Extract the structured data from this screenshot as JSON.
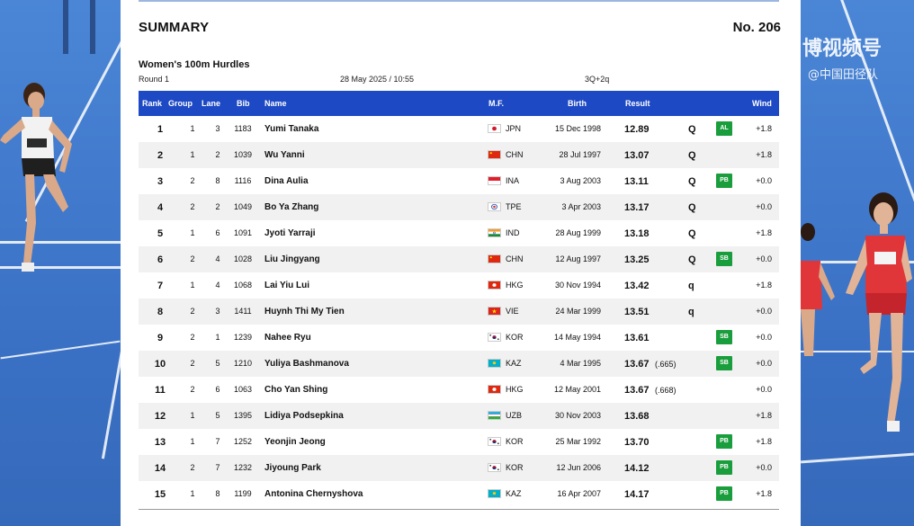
{
  "document": {
    "title": "SUMMARY",
    "number": "No. 206",
    "event": "Women's 100m Hurdles",
    "round": "Round 1",
    "datetime": "28 May 2025 / 10:55",
    "qualification": "3Q+2q"
  },
  "watermark": {
    "line1": "博视频号",
    "line2": "@中国田径队"
  },
  "table": {
    "headers": {
      "rank": "Rank",
      "group": "Group",
      "lane": "Lane",
      "bib": "Bib",
      "name": "Name",
      "mf": "M.F.",
      "birth": "Birth",
      "result": "Result",
      "wind": "Wind"
    },
    "rows": [
      {
        "rank": "1",
        "group": "1",
        "lane": "3",
        "bib": "1183",
        "name": "Yumi Tanaka",
        "country": "JPN",
        "flag": "jpn",
        "birth": "15 Dec 1998",
        "result": "12.89",
        "sub": "",
        "qual": "Q",
        "badge": "AL",
        "wind": "+1.8"
      },
      {
        "rank": "2",
        "group": "1",
        "lane": "2",
        "bib": "1039",
        "name": "Wu Yanni",
        "country": "CHN",
        "flag": "chn",
        "birth": "28 Jul 1997",
        "result": "13.07",
        "sub": "",
        "qual": "Q",
        "badge": "",
        "wind": "+1.8"
      },
      {
        "rank": "3",
        "group": "2",
        "lane": "8",
        "bib": "1116",
        "name": "Dina Aulia",
        "country": "INA",
        "flag": "ina",
        "birth": "3 Aug 2003",
        "result": "13.11",
        "sub": "",
        "qual": "Q",
        "badge": "PB",
        "wind": "+0.0"
      },
      {
        "rank": "4",
        "group": "2",
        "lane": "2",
        "bib": "1049",
        "name": "Bo Ya Zhang",
        "country": "TPE",
        "flag": "tpe",
        "birth": "3 Apr 2003",
        "result": "13.17",
        "sub": "",
        "qual": "Q",
        "badge": "",
        "wind": "+0.0"
      },
      {
        "rank": "5",
        "group": "1",
        "lane": "6",
        "bib": "1091",
        "name": "Jyoti Yarraji",
        "country": "IND",
        "flag": "ind",
        "birth": "28 Aug 1999",
        "result": "13.18",
        "sub": "",
        "qual": "Q",
        "badge": "",
        "wind": "+1.8"
      },
      {
        "rank": "6",
        "group": "2",
        "lane": "4",
        "bib": "1028",
        "name": "Liu Jingyang",
        "country": "CHN",
        "flag": "chn",
        "birth": "12 Aug 1997",
        "result": "13.25",
        "sub": "",
        "qual": "Q",
        "badge": "SB",
        "wind": "+0.0"
      },
      {
        "rank": "7",
        "group": "1",
        "lane": "4",
        "bib": "1068",
        "name": "Lai Yiu Lui",
        "country": "HKG",
        "flag": "hkg",
        "birth": "30 Nov 1994",
        "result": "13.42",
        "sub": "",
        "qual": "q",
        "badge": "",
        "wind": "+1.8"
      },
      {
        "rank": "8",
        "group": "2",
        "lane": "3",
        "bib": "1411",
        "name": "Huynh Thi My Tien",
        "country": "VIE",
        "flag": "vie",
        "birth": "24 Mar 1999",
        "result": "13.51",
        "sub": "",
        "qual": "q",
        "badge": "",
        "wind": "+0.0"
      },
      {
        "rank": "9",
        "group": "2",
        "lane": "1",
        "bib": "1239",
        "name": "Nahee Ryu",
        "country": "KOR",
        "flag": "kor",
        "birth": "14 May 1994",
        "result": "13.61",
        "sub": "",
        "qual": "",
        "badge": "SB",
        "wind": "+0.0"
      },
      {
        "rank": "10",
        "group": "2",
        "lane": "5",
        "bib": "1210",
        "name": "Yuliya Bashmanova",
        "country": "KAZ",
        "flag": "kaz",
        "birth": "4 Mar 1995",
        "result": "13.67",
        "sub": "(.665)",
        "qual": "",
        "badge": "SB",
        "wind": "+0.0"
      },
      {
        "rank": "11",
        "group": "2",
        "lane": "6",
        "bib": "1063",
        "name": "Cho Yan Shing",
        "country": "HKG",
        "flag": "hkg",
        "birth": "12 May 2001",
        "result": "13.67",
        "sub": "(.668)",
        "qual": "",
        "badge": "",
        "wind": "+0.0"
      },
      {
        "rank": "12",
        "group": "1",
        "lane": "5",
        "bib": "1395",
        "name": "Lidiya Podsepkina",
        "country": "UZB",
        "flag": "uzb",
        "birth": "30 Nov 2003",
        "result": "13.68",
        "sub": "",
        "qual": "",
        "badge": "",
        "wind": "+1.8"
      },
      {
        "rank": "13",
        "group": "1",
        "lane": "7",
        "bib": "1252",
        "name": "Yeonjin Jeong",
        "country": "KOR",
        "flag": "kor",
        "birth": "25 Mar 1992",
        "result": "13.70",
        "sub": "",
        "qual": "",
        "badge": "PB",
        "wind": "+1.8"
      },
      {
        "rank": "14",
        "group": "2",
        "lane": "7",
        "bib": "1232",
        "name": "Jiyoung Park",
        "country": "KOR",
        "flag": "kor",
        "birth": "12 Jun 2006",
        "result": "14.12",
        "sub": "",
        "qual": "",
        "badge": "PB",
        "wind": "+0.0"
      },
      {
        "rank": "15",
        "group": "1",
        "lane": "8",
        "bib": "1199",
        "name": "Antonina Chernyshova",
        "country": "KAZ",
        "flag": "kaz",
        "birth": "16 Apr 2007",
        "result": "14.17",
        "sub": "",
        "qual": "",
        "badge": "PB",
        "wind": "+1.8"
      }
    ]
  },
  "colors": {
    "header_bg": "#1e49c4",
    "badge_green": "#1a9d3c",
    "track_blue": "#3f74c4"
  }
}
